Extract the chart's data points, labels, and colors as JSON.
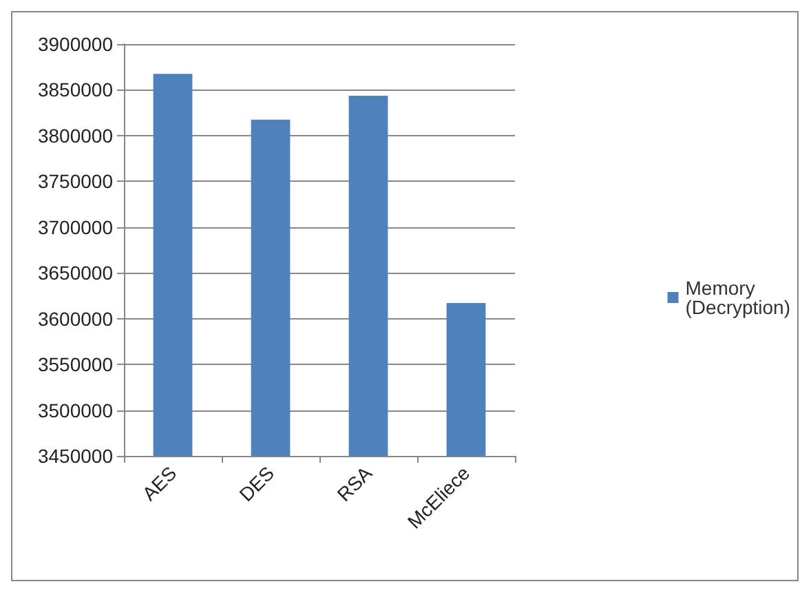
{
  "chart_data": {
    "type": "bar",
    "categories": [
      "AES",
      "DES",
      "RSA",
      "McEliece"
    ],
    "series": [
      {
        "name": "Memory\n(Decryption)",
        "color": "#4f81bd",
        "values": [
          3867500,
          3817500,
          3843500,
          3617000
        ]
      }
    ],
    "ylim": [
      3450000,
      3900000
    ],
    "yticks": [
      3450000,
      3500000,
      3550000,
      3600000,
      3650000,
      3700000,
      3750000,
      3800000,
      3850000,
      3900000
    ],
    "grid": "y",
    "legend": "right"
  }
}
